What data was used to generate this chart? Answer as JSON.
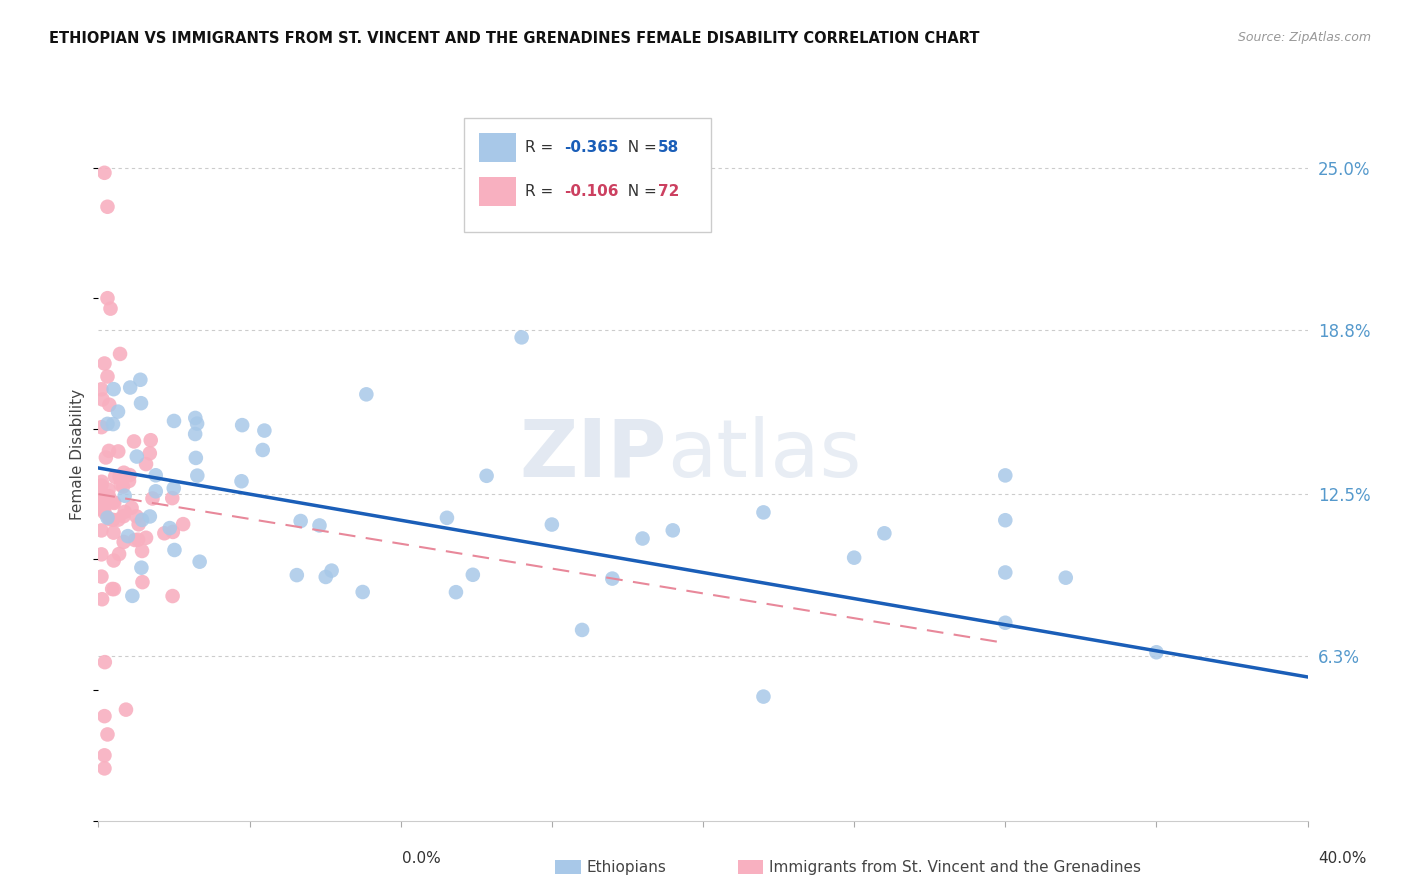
{
  "title": "ETHIOPIAN VS IMMIGRANTS FROM ST. VINCENT AND THE GRENADINES FEMALE DISABILITY CORRELATION CHART",
  "source": "Source: ZipAtlas.com",
  "ylabel": "Female Disability",
  "ytick_labels": [
    "25.0%",
    "18.8%",
    "12.5%",
    "6.3%"
  ],
  "ytick_values": [
    0.25,
    0.188,
    0.125,
    0.063
  ],
  "xlim": [
    0.0,
    0.4
  ],
  "ylim": [
    0.0,
    0.28
  ],
  "color_blue": "#a8c8e8",
  "color_blue_line": "#1a5eb8",
  "color_pink": "#f8b0c0",
  "color_pink_line": "#e8889a",
  "watermark_zip": "ZIP",
  "watermark_atlas": "atlas",
  "legend_r1": "-0.365",
  "legend_n1": "58",
  "legend_r2": "-0.106",
  "legend_n2": "72",
  "blue_line_x0": 0.0,
  "blue_line_x1": 0.4,
  "blue_line_y0": 0.135,
  "blue_line_y1": 0.055,
  "pink_line_x0": 0.0,
  "pink_line_x1": 0.3,
  "pink_line_y0": 0.125,
  "pink_line_y1": 0.068
}
